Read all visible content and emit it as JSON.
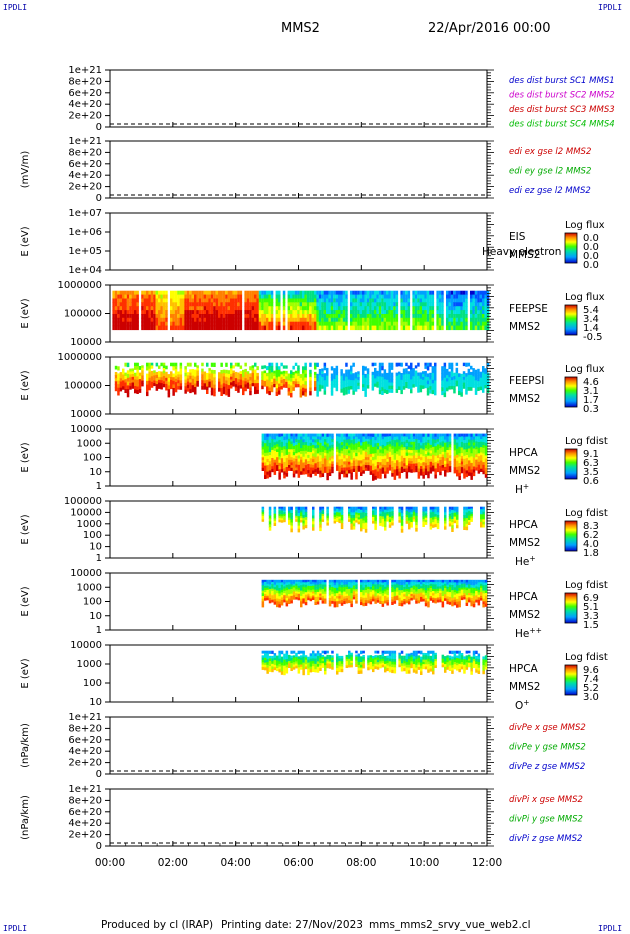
{
  "header": {
    "corner_left_top": "IPDLI",
    "corner_right_top": "IPDLI",
    "corner_left_bottom": "IPDLI",
    "corner_right_bottom": "IPDLI",
    "mission": "MMS2",
    "date": "22/Apr/2016 00:00"
  },
  "footer": {
    "produced_by": "Produced by cl (IRAP)",
    "printing_date": "Printing date: 27/Nov/2023",
    "file_name": "mms_mms2_srvy_vue_web2.cl"
  },
  "chart_data": {
    "type": "multi-panel timeseries",
    "x_ticks": [
      "00:00",
      "02:00",
      "04:00",
      "06:00",
      "08:00",
      "10:00",
      "12:00"
    ],
    "x_range_hours": [
      0,
      12
    ],
    "panels": [
      {
        "id": "des-dist",
        "type": "line",
        "ylabel": "",
        "yticks": [
          "1e+21",
          "8e+20",
          "6e+20",
          "4e+20",
          "2e+20",
          "0"
        ],
        "ylim": [
          0,
          1e+21
        ],
        "dashed_zero": true,
        "legend": [
          {
            "label": "des dist burst SC1 MMS1",
            "color": "#0000cc"
          },
          {
            "label": "des dist burst SC2 MMS2",
            "color": "#cc00cc"
          },
          {
            "label": "des dist burst SC3 MMS3",
            "color": "#cc0000"
          },
          {
            "label": "des dist burst SC4 MMS4",
            "color": "#00bb00"
          }
        ]
      },
      {
        "id": "edi-e",
        "type": "line",
        "ylabel": "(mV/m)",
        "yticks": [
          "1e+21",
          "8e+20",
          "6e+20",
          "4e+20",
          "2e+20",
          "0"
        ],
        "ylim": [
          0,
          1e+21
        ],
        "dashed_zero": true,
        "legend": [
          {
            "label": "edi ex gse l2 MMS2",
            "color": "#cc0000"
          },
          {
            "label": "edi ey gse l2 MMS2",
            "color": "#00aa00"
          },
          {
            "label": "edi ez gse l2 MMS2",
            "color": "#0000cc"
          }
        ]
      },
      {
        "id": "eis",
        "type": "heatmap",
        "ylabel": "E (eV)",
        "yticks": [
          "1e+07",
          "1e+06",
          "1e+05",
          "1e+04"
        ],
        "labels": [
          "EIS",
          "MMS2"
        ],
        "overlay_text": "Heavy electron to",
        "colorbar_title": "Log flux",
        "colorbar_ticks": [
          "0.0",
          "0.0",
          "0.0",
          "0.0"
        ]
      },
      {
        "id": "feeps-e",
        "type": "heatmap",
        "ylabel": "E (eV)",
        "yticks": [
          "1000000",
          "100000",
          "10000"
        ],
        "labels": [
          "FEEPSE",
          "MMS2"
        ],
        "colorbar_title": "Log flux",
        "colorbar_ticks": [
          "5.4",
          "3.4",
          "1.4",
          "-0.5"
        ]
      },
      {
        "id": "feeps-i",
        "type": "heatmap",
        "ylabel": "E (eV)",
        "yticks": [
          "1000000",
          "100000",
          "10000"
        ],
        "labels": [
          "FEEPSI",
          "MMS2"
        ],
        "colorbar_title": "Log flux",
        "colorbar_ticks": [
          "4.6",
          "3.1",
          "1.7",
          "0.3"
        ]
      },
      {
        "id": "hpca-h",
        "type": "heatmap",
        "ylabel": "E (eV)",
        "yticks": [
          "10000",
          "1000",
          "100",
          "10",
          "1"
        ],
        "labels": [
          "HPCA",
          "MMS2"
        ],
        "species": "H",
        "species_sup": "+",
        "colorbar_title": "Log fdist",
        "colorbar_ticks": [
          "9.1",
          "6.3",
          "3.5",
          "0.6"
        ]
      },
      {
        "id": "hpca-he",
        "type": "heatmap",
        "ylabel": "E (eV)",
        "yticks": [
          "100000",
          "10000",
          "1000",
          "100",
          "10",
          "1"
        ],
        "labels": [
          "HPCA",
          "MMS2"
        ],
        "species": "He",
        "species_sup": "+",
        "colorbar_title": "Log fdist",
        "colorbar_ticks": [
          "8.3",
          "6.2",
          "4.0",
          "1.8"
        ]
      },
      {
        "id": "hpca-he2",
        "type": "heatmap",
        "ylabel": "E (eV)",
        "yticks": [
          "10000",
          "1000",
          "100",
          "10",
          "1"
        ],
        "labels": [
          "HPCA",
          "MMS2"
        ],
        "species": "He",
        "species_sup": "++",
        "colorbar_title": "Log fdist",
        "colorbar_ticks": [
          "6.9",
          "5.1",
          "3.3",
          "1.5"
        ]
      },
      {
        "id": "hpca-o",
        "type": "heatmap",
        "ylabel": "E (eV)",
        "yticks": [
          "10000",
          "1000",
          "100",
          "10"
        ],
        "labels": [
          "HPCA",
          "MMS2"
        ],
        "species": "O",
        "species_sup": "+",
        "colorbar_title": "Log fdist",
        "colorbar_ticks": [
          "9.6",
          "7.4",
          "5.2",
          "3.0"
        ]
      },
      {
        "id": "divpe",
        "type": "line",
        "ylabel": "(nPa/km)",
        "yticks": [
          "1e+21",
          "8e+20",
          "6e+20",
          "4e+20",
          "2e+20",
          "0"
        ],
        "ylim": [
          0,
          1e+21
        ],
        "dashed_zero": true,
        "legend": [
          {
            "label": "divPe x gse MMS2",
            "color": "#cc0000"
          },
          {
            "label": "divPe y gse MMS2",
            "color": "#00aa00"
          },
          {
            "label": "divPe z gse MMS2",
            "color": "#0000cc"
          }
        ]
      },
      {
        "id": "divpi",
        "type": "line",
        "ylabel": "(nPa/km)",
        "yticks": [
          "1e+21",
          "8e+20",
          "6e+20",
          "4e+20",
          "2e+20",
          "0"
        ],
        "ylim": [
          0,
          1e+21
        ],
        "dashed_zero": true,
        "legend": [
          {
            "label": "divPi x gse MMS2",
            "color": "#cc0000"
          },
          {
            "label": "divPi y gse MMS2",
            "color": "#00aa00"
          },
          {
            "label": "divPi z gse MMS2",
            "color": "#0000cc"
          }
        ]
      }
    ]
  }
}
